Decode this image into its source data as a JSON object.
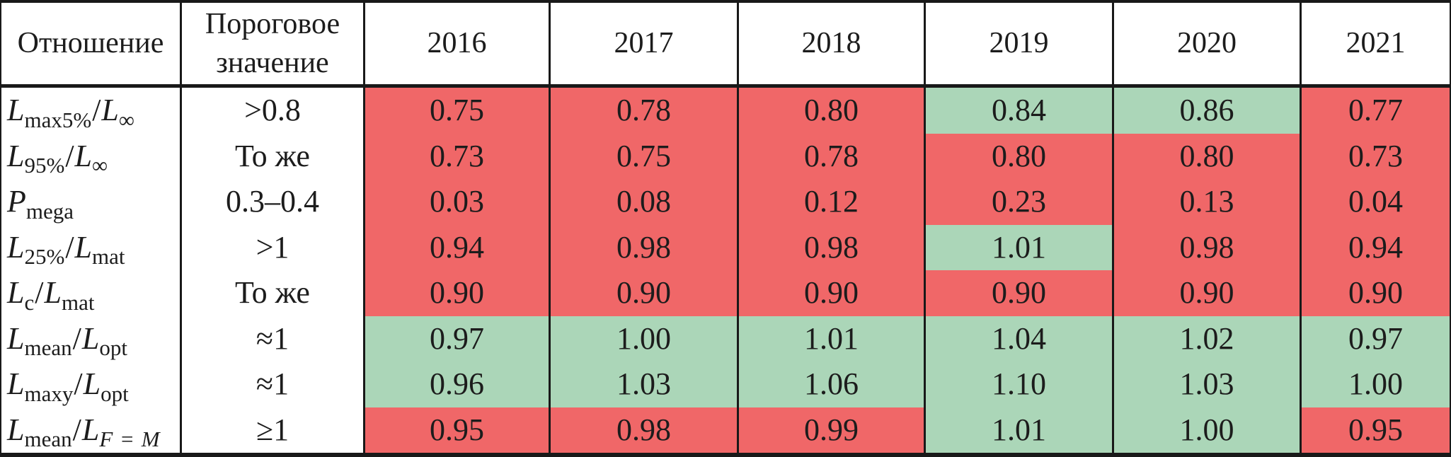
{
  "table": {
    "header": {
      "ratio": "Отношение",
      "threshold": "Пороговое значение",
      "years": [
        "2016",
        "2017",
        "2018",
        "2019",
        "2020",
        "2021"
      ]
    },
    "rows": [
      {
        "label_parts": [
          [
            "i",
            "L"
          ],
          [
            "sub",
            "max5%"
          ],
          [
            "n",
            "/"
          ],
          [
            "i",
            "L"
          ],
          [
            "sub",
            "∞"
          ]
        ],
        "label_text": "Lmax5%/L∞",
        "threshold": ">0.8",
        "values": [
          "0.75",
          "0.78",
          "0.80",
          "0.84",
          "0.86",
          "0.77"
        ],
        "status": [
          "bad",
          "bad",
          "bad",
          "good",
          "good",
          "bad"
        ]
      },
      {
        "label_parts": [
          [
            "i",
            "L"
          ],
          [
            "sub",
            "95%"
          ],
          [
            "n",
            "/"
          ],
          [
            "i",
            "L"
          ],
          [
            "sub",
            "∞"
          ]
        ],
        "label_text": "L95%/L∞",
        "threshold": "То же",
        "values": [
          "0.73",
          "0.75",
          "0.78",
          "0.80",
          "0.80",
          "0.73"
        ],
        "status": [
          "bad",
          "bad",
          "bad",
          "bad",
          "bad",
          "bad"
        ]
      },
      {
        "label_parts": [
          [
            "i",
            "P"
          ],
          [
            "sub",
            "mega"
          ]
        ],
        "label_text": "Pmega",
        "threshold": "0.3–0.4",
        "values": [
          "0.03",
          "0.08",
          "0.12",
          "0.23",
          "0.13",
          "0.04"
        ],
        "status": [
          "bad",
          "bad",
          "bad",
          "bad",
          "bad",
          "bad"
        ]
      },
      {
        "label_parts": [
          [
            "i",
            "L"
          ],
          [
            "sub",
            "25%"
          ],
          [
            "n",
            "/"
          ],
          [
            "i",
            "L"
          ],
          [
            "sub",
            "mat"
          ]
        ],
        "label_text": "L25%/Lmat",
        "threshold": ">1",
        "values": [
          "0.94",
          "0.98",
          "0.98",
          "1.01",
          "0.98",
          "0.94"
        ],
        "status": [
          "bad",
          "bad",
          "bad",
          "good",
          "bad",
          "bad"
        ]
      },
      {
        "label_parts": [
          [
            "i",
            "L"
          ],
          [
            "sub",
            "c"
          ],
          [
            "n",
            "/"
          ],
          [
            "i",
            "L"
          ],
          [
            "sub",
            "mat"
          ]
        ],
        "label_text": "Lc/Lmat",
        "threshold": "То же",
        "values": [
          "0.90",
          "0.90",
          "0.90",
          "0.90",
          "0.90",
          "0.90"
        ],
        "status": [
          "bad",
          "bad",
          "bad",
          "bad",
          "bad",
          "bad"
        ]
      },
      {
        "label_parts": [
          [
            "i",
            "L"
          ],
          [
            "sub",
            "mean"
          ],
          [
            "n",
            "/"
          ],
          [
            "i",
            "L"
          ],
          [
            "sub",
            "opt"
          ]
        ],
        "label_text": "Lmean/Lopt",
        "threshold": "≈1",
        "values": [
          "0.97",
          "1.00",
          "1.01",
          "1.04",
          "1.02",
          "0.97"
        ],
        "status": [
          "good",
          "good",
          "good",
          "good",
          "good",
          "good"
        ]
      },
      {
        "label_parts": [
          [
            "i",
            "L"
          ],
          [
            "sub",
            "maxy"
          ],
          [
            "n",
            "/"
          ],
          [
            "i",
            "L"
          ],
          [
            "sub",
            "opt"
          ]
        ],
        "label_text": "Lmaxy/Lopt",
        "threshold": "≈1",
        "values": [
          "0.96",
          "1.03",
          "1.06",
          "1.10",
          "1.03",
          "1.00"
        ],
        "status": [
          "good",
          "good",
          "good",
          "good",
          "good",
          "good"
        ]
      },
      {
        "label_parts": [
          [
            "i",
            "L"
          ],
          [
            "sub",
            "mean"
          ],
          [
            "n",
            "/"
          ],
          [
            "i",
            "L"
          ],
          [
            "isub",
            "F = M"
          ]
        ],
        "label_text": "Lmean/LF=M",
        "threshold": "≥1",
        "values": [
          "0.95",
          "0.98",
          "0.99",
          "1.01",
          "1.00",
          "0.95"
        ],
        "status": [
          "bad",
          "bad",
          "bad",
          "good",
          "good",
          "bad"
        ]
      }
    ],
    "colors": {
      "bad": "#f06768",
      "good": "#abd6b8",
      "line": "#191919"
    }
  }
}
